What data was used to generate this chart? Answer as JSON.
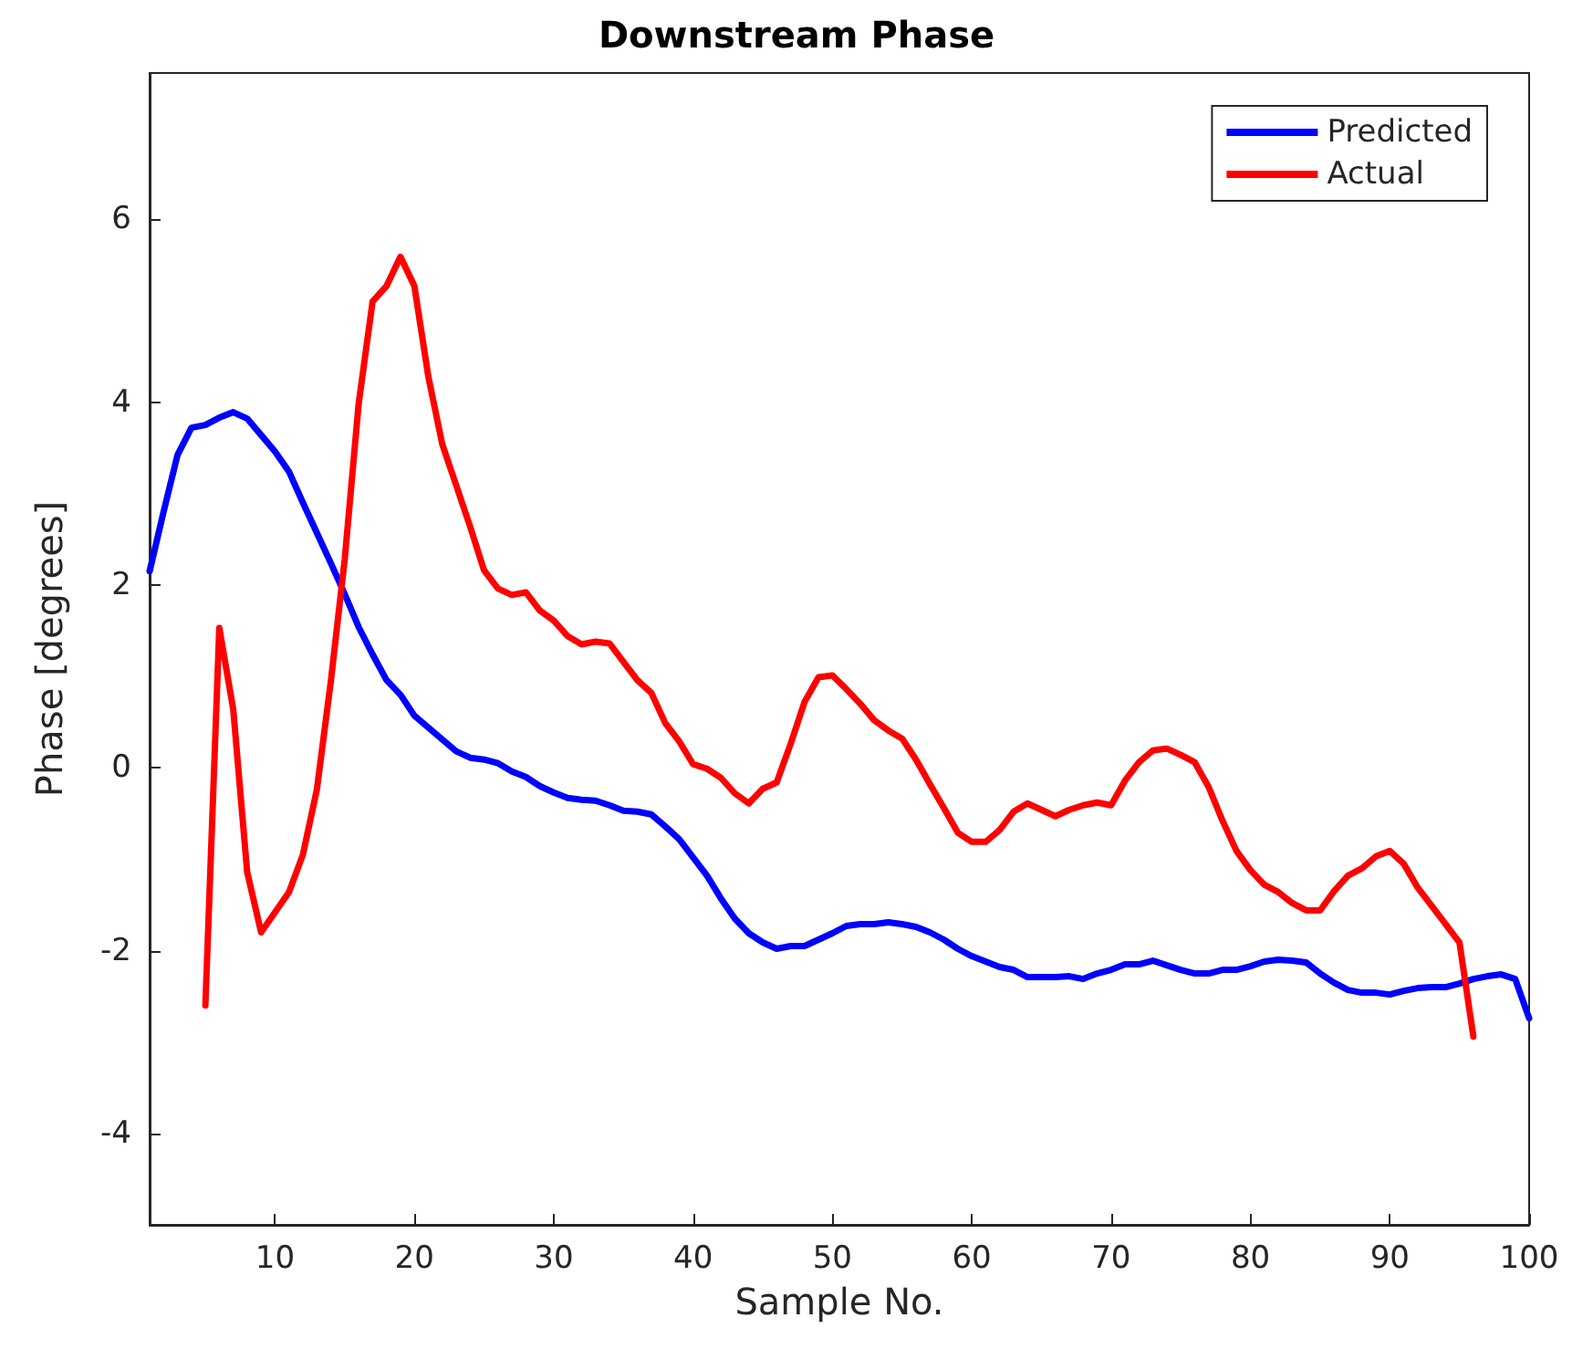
{
  "chart_data": {
    "type": "line",
    "title": "Downstream Phase",
    "xlabel": "Sample No.",
    "ylabel": "Phase [degrees]",
    "xlim": [
      1,
      100
    ],
    "xticks": [
      10,
      20,
      30,
      40,
      50,
      60,
      70,
      80,
      90,
      100
    ],
    "ylim": [
      -5,
      7.6
    ],
    "yticks": [
      -4,
      -2,
      0,
      2,
      4,
      6
    ],
    "grid": false,
    "legend": "top right",
    "marker": "none",
    "line_style": "solid",
    "series": [
      {
        "name": "Predicted",
        "color": "#0000ff",
        "x": [
          1,
          2,
          3,
          4,
          5,
          6,
          7,
          8,
          9,
          10,
          11,
          12,
          13,
          14,
          15,
          16,
          17,
          18,
          19,
          20,
          21,
          22,
          23,
          24,
          25,
          26,
          27,
          28,
          29,
          30,
          31,
          32,
          33,
          34,
          35,
          36,
          37,
          38,
          39,
          40,
          41,
          42,
          43,
          44,
          45,
          46,
          47,
          48,
          49,
          50,
          51,
          52,
          53,
          54,
          55,
          56,
          57,
          58,
          59,
          60,
          61,
          62,
          63,
          64,
          65,
          66,
          67,
          68,
          69,
          70,
          71,
          72,
          73,
          74,
          75,
          76,
          77,
          78,
          79,
          80,
          81,
          82,
          83,
          84,
          85,
          86,
          87,
          88,
          89,
          90,
          91,
          92,
          93,
          94,
          95,
          96,
          97,
          98,
          99,
          100
        ],
        "values": [
          2.15,
          2.8,
          3.42,
          3.72,
          3.75,
          3.83,
          3.89,
          3.82,
          3.64,
          3.46,
          3.24,
          2.9,
          2.57,
          2.24,
          1.9,
          1.54,
          1.24,
          0.96,
          0.8,
          0.57,
          0.44,
          0.31,
          0.18,
          0.11,
          0.09,
          0.05,
          -0.04,
          -0.1,
          -0.2,
          -0.27,
          -0.33,
          -0.35,
          -0.36,
          -0.41,
          -0.47,
          -0.48,
          -0.51,
          -0.64,
          -0.78,
          -0.98,
          -1.18,
          -1.43,
          -1.65,
          -1.81,
          -1.91,
          -1.98,
          -1.95,
          -1.95,
          -1.88,
          -1.81,
          -1.73,
          -1.71,
          -1.71,
          -1.69,
          -1.71,
          -1.74,
          -1.8,
          -1.88,
          -1.98,
          -2.06,
          -2.12,
          -2.18,
          -2.21,
          -2.29,
          -2.29,
          -2.29,
          -2.28,
          -2.31,
          -2.25,
          -2.21,
          -2.15,
          -2.15,
          -2.11,
          -2.16,
          -2.21,
          -2.25,
          -2.25,
          -2.21,
          -2.21,
          -2.17,
          -2.12,
          -2.1,
          -2.11,
          -2.13,
          -2.25,
          -2.35,
          -2.43,
          -2.46,
          -2.46,
          -2.48,
          -2.44,
          -2.41,
          -2.4,
          -2.4,
          -2.36,
          -2.31,
          -2.28,
          -2.26,
          -2.31,
          -2.74
        ]
      },
      {
        "name": "Actual",
        "color": "#ff0000",
        "x": [
          5,
          6,
          7,
          8,
          9,
          10,
          11,
          12,
          13,
          14,
          15,
          16,
          17,
          18,
          19,
          20,
          21,
          22,
          23,
          24,
          25,
          26,
          27,
          28,
          29,
          30,
          31,
          32,
          33,
          34,
          35,
          36,
          37,
          38,
          39,
          40,
          41,
          42,
          43,
          44,
          45,
          46,
          47,
          48,
          49,
          50,
          51,
          52,
          53,
          54,
          55,
          56,
          57,
          58,
          59,
          60,
          61,
          62,
          63,
          64,
          65,
          66,
          67,
          68,
          69,
          70,
          71,
          72,
          73,
          74,
          75,
          76,
          77,
          78,
          79,
          80,
          81,
          82,
          83,
          84,
          85,
          86,
          87,
          88,
          89,
          90,
          91,
          92,
          93,
          94,
          95,
          96
        ],
        "values": [
          -2.6,
          1.53,
          0.64,
          -1.14,
          -1.8,
          -1.58,
          -1.36,
          -0.95,
          -0.24,
          0.94,
          2.28,
          3.98,
          5.1,
          5.27,
          5.59,
          5.27,
          4.28,
          3.54,
          3.09,
          2.64,
          2.16,
          1.96,
          1.89,
          1.92,
          1.72,
          1.61,
          1.44,
          1.35,
          1.38,
          1.36,
          1.16,
          0.96,
          0.82,
          0.49,
          0.29,
          0.04,
          -0.01,
          -0.11,
          -0.28,
          -0.39,
          -0.23,
          -0.16,
          0.26,
          0.72,
          0.99,
          1.01,
          0.86,
          0.7,
          0.52,
          0.41,
          0.32,
          0.09,
          -0.18,
          -0.44,
          -0.71,
          -0.81,
          -0.81,
          -0.68,
          -0.48,
          -0.39,
          -0.46,
          -0.53,
          -0.46,
          -0.41,
          -0.38,
          -0.41,
          -0.14,
          0.06,
          0.19,
          0.21,
          0.14,
          0.06,
          -0.21,
          -0.58,
          -0.91,
          -1.12,
          -1.28,
          -1.36,
          -1.48,
          -1.56,
          -1.56,
          -1.35,
          -1.18,
          -1.1,
          -0.97,
          -0.91,
          -1.05,
          -1.31,
          -1.51,
          -1.71,
          -1.91,
          -2.94
        ]
      }
    ]
  }
}
